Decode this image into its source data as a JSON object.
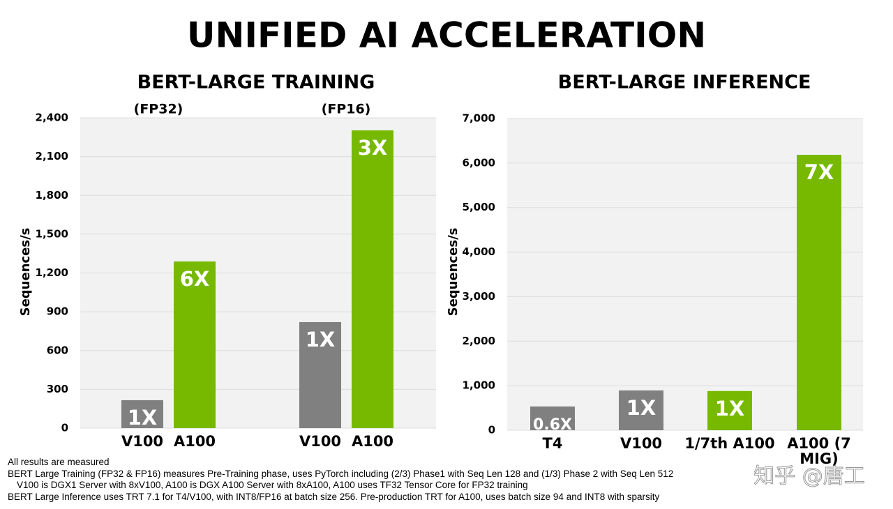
{
  "title": "UNIFIED AI ACCELERATION",
  "chart_data": [
    {
      "type": "bar",
      "title": "BERT-LARGE TRAINING",
      "ylabel": "Sequences/s",
      "groups": [
        "(FP32)",
        "(FP16)"
      ],
      "categories": [
        "V100",
        "A100",
        "V100",
        "A100"
      ],
      "values": [
        216,
        1289,
        820,
        2303
      ],
      "bar_labels": [
        "1X",
        "6X",
        "1X",
        "3X"
      ],
      "colors": [
        "#808080",
        "#76b900",
        "#808080",
        "#76b900"
      ],
      "ylim": [
        0,
        2400
      ],
      "yticks": [
        0,
        300,
        600,
        900,
        {
          "value": 1200,
          "label": "1,200"
        },
        {
          "value": 1500,
          "label": "1,500"
        },
        {
          "value": 1800,
          "label": "1,800"
        },
        {
          "value": 2100,
          "label": "2,100"
        },
        {
          "value": 2400,
          "label": "2,400"
        }
      ],
      "grid": true
    },
    {
      "type": "bar",
      "title": "BERT-LARGE INFERENCE",
      "ylabel": "Sequences/s",
      "categories": [
        "T4",
        "V100",
        "1/7th A100",
        "A100 (7 MIG)"
      ],
      "values": [
        532,
        893,
        880,
        6185
      ],
      "bar_labels": [
        "0.6X",
        "1X",
        "1X",
        "7X"
      ],
      "colors": [
        "#808080",
        "#808080",
        "#76b900",
        "#76b900"
      ],
      "ylim": [
        0,
        7000
      ],
      "yticks": [
        0,
        {
          "value": 1000,
          "label": "1,000"
        },
        {
          "value": 2000,
          "label": "2,000"
        },
        {
          "value": 3000,
          "label": "3,000"
        },
        {
          "value": 4000,
          "label": "4,000"
        },
        {
          "value": 5000,
          "label": "5,000"
        },
        {
          "value": 6000,
          "label": "6,000"
        },
        {
          "value": 7000,
          "label": "7,000"
        }
      ],
      "grid": true
    }
  ],
  "footnotes": [
    "All results are measured",
    "BERT Large Training (FP32 & FP16) measures Pre-Training phase, uses PyTorch including  (2/3) Phase1 with Seq Len 128 and (1/3) Phase 2 with Seq Len 512",
    "V100 is DGX1 Server with 8xV100, A100 is DGX A100 Server with 8xA100, A100 uses TF32 Tensor Core for FP32 training",
    "BERT Large Inference uses TRT 7.1 for T4/V100, with INT8/FP16 at batch size 256. Pre-production TRT for A100, uses batch size 94 and INT8 with sparsity"
  ],
  "watermark": "知乎 @唐工"
}
